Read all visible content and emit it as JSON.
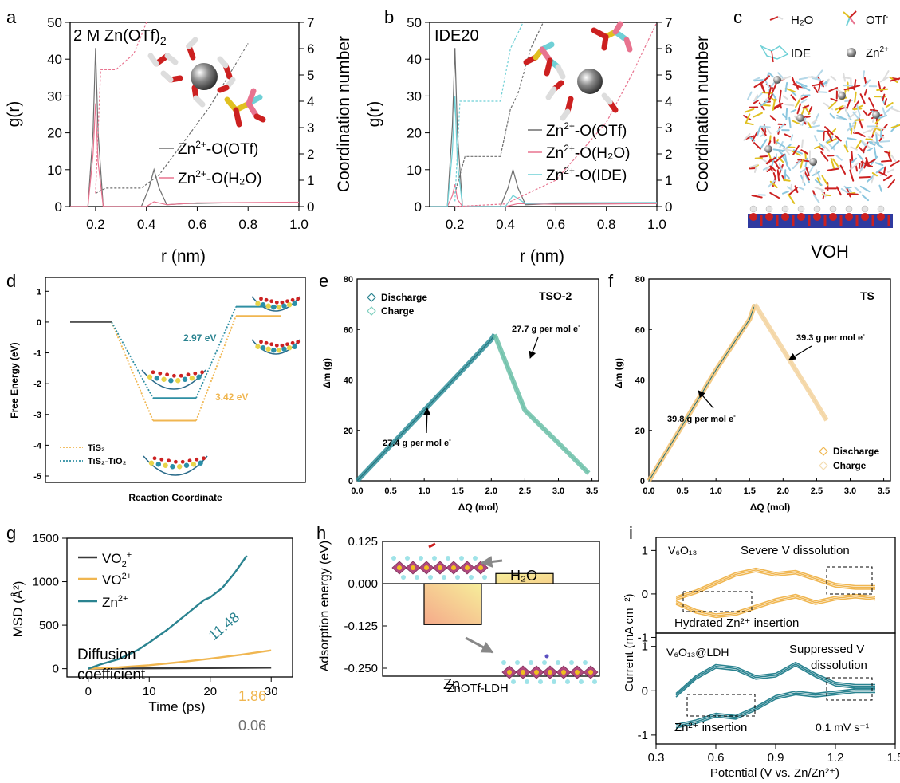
{
  "colors": {
    "gray": "#6e6e6e",
    "pink": "#e8738f",
    "cyan": "#6fd0d6",
    "teal": "#2a8390",
    "orange": "#f0b650",
    "tealdot": "#2f8fa3",
    "black": "#3a3a3a"
  },
  "panels": {
    "a": {
      "label": "a",
      "annotation": "2 M Zn(OTf)",
      "annotation_sub": "2",
      "xlabel": "r (nm)",
      "ylabel": "g(r)",
      "y2label": "Coordination number",
      "xticks": [
        "0.2",
        "0.4",
        "0.6",
        "0.8",
        "1.0"
      ],
      "yticks": [
        "0",
        "10",
        "20",
        "30",
        "40",
        "50"
      ],
      "y2ticks": [
        "0",
        "1",
        "2",
        "3",
        "4",
        "5",
        "6",
        "7"
      ],
      "legend": [
        {
          "base": "Zn",
          "sup": "2+",
          "rest": "-O(OTf)"
        },
        {
          "base": "Zn",
          "sup": "2+",
          "rest": "-O(H₂O)"
        }
      ]
    },
    "b": {
      "label": "b",
      "annotation": "IDE20",
      "xlabel": "r (nm)",
      "ylabel": "g(r)",
      "y2label": "Coordination number",
      "xticks": [
        "0.2",
        "0.4",
        "0.6",
        "0.8",
        "1.0"
      ],
      "yticks": [
        "0",
        "10",
        "20",
        "30",
        "40",
        "50"
      ],
      "y2ticks": [
        "0",
        "1",
        "2",
        "3",
        "4",
        "5",
        "6",
        "7"
      ],
      "legend": [
        {
          "base": "Zn",
          "sup": "2+",
          "rest": "-O(OTf)"
        },
        {
          "base": "Zn",
          "sup": "2+",
          "rest": "-O(H₂O)"
        },
        {
          "base": "Zn",
          "sup": "2+",
          "rest": "-O(IDE)"
        }
      ]
    },
    "c": {
      "label": "c",
      "legend_h2o": "H₂O",
      "legend_otf": "OTf",
      "legend_otf_sup": "-",
      "legend_ide": "IDE",
      "legend_zn": "Zn",
      "legend_zn_sup": "2+",
      "caption": "VOH"
    },
    "d": {
      "label": "d",
      "ylabel": "Free Energy (eV)",
      "xlabel": "Reaction Coordinate",
      "yticks": [
        "1",
        "0",
        "-1",
        "-2",
        "-3",
        "-4",
        "-5"
      ],
      "barrier1": "2.97 eV",
      "barrier2": "3.42 eV",
      "legend": [
        "TiS₂",
        "TiS₂-TiO₂"
      ]
    },
    "e": {
      "label": "e",
      "title": "TSO-2",
      "xlabel": "ΔQ (mol)",
      "ylabel": "Δm (g)",
      "xticks": [
        "0.0",
        "0.5",
        "1.0",
        "1.5",
        "2.0",
        "2.5",
        "3.0",
        "3.5"
      ],
      "yticks": [
        "0",
        "20",
        "40",
        "60",
        "80"
      ],
      "legend": [
        "Discharge",
        "Charge"
      ],
      "ann1": "27.7 g per mol e",
      "ann2": "27.4 g per mol e",
      "ann_sup": "-"
    },
    "f": {
      "label": "f",
      "title": "TS",
      "xlabel": "ΔQ (mol)",
      "ylabel": "Δm (g)",
      "xticks": [
        "0.0",
        "0.5",
        "1.0",
        "1.5",
        "2.0",
        "2.5",
        "3.0",
        "3.5"
      ],
      "yticks": [
        "0",
        "20",
        "40",
        "60",
        "80"
      ],
      "legend": [
        "Discharge",
        "Charge"
      ],
      "ann1": "39.3 g per mol e",
      "ann2": "39.8 g per mol e",
      "ann_sup": "-"
    },
    "g": {
      "label": "g",
      "xlabel": "Time (ps)",
      "ylabel": "MSD (Å²)",
      "xticks": [
        "0",
        "10",
        "20",
        "30"
      ],
      "yticks": [
        "0",
        "500",
        "1000",
        "1500"
      ],
      "legend": [
        {
          "base": "VO",
          "sub": "2",
          "sup": "+"
        },
        {
          "base": "VO",
          "sub": "",
          "sup": "2+"
        },
        {
          "base": "Zn",
          "sub": "",
          "sup": "2+"
        }
      ],
      "text1": "Diffusion",
      "text2": "coefficient",
      "val_zn": "11.48",
      "val_vo": "1.86",
      "val_vo2": "0.06"
    },
    "h": {
      "label": "h",
      "ylabel": "Adsorption energy (eV)",
      "xlabel": "ZnOTf-LDH",
      "yticks": [
        "0.125",
        "0.000",
        "-0.125",
        "-0.250"
      ],
      "bar1_label": "H₂O",
      "bar2_label": "Zn"
    },
    "i": {
      "label": "i",
      "ylabel": "Current (mA cm⁻²)",
      "xlabel": "Potential (V vs. Zn/Zn²⁺)",
      "xticks": [
        "0.3",
        "0.6",
        "0.9",
        "1.2",
        "1.5"
      ],
      "yticks_top": [
        "1",
        "0",
        "-1"
      ],
      "yticks_bot": [
        "1",
        "0",
        "-1"
      ],
      "top_title": "V₆O₁₃",
      "top_note": "Severe V dissolution",
      "top_note2": "Hydrated Zn²⁺ insertion",
      "bot_title": "V₆O₁₃@LDH",
      "bot_note_a": "Suppressed V",
      "bot_note_b": "dissolution",
      "bot_note2": "Zn²⁺ insertion",
      "scan_rate": "0.1 mV s⁻¹"
    }
  },
  "chart_data": [
    {
      "type": "line",
      "panel": "a",
      "xlabel": "r (nm)",
      "ylabel": "g(r)",
      "y2label": "Coordination number",
      "xlim": [
        0.1,
        1.0
      ],
      "ylim": [
        0,
        50
      ],
      "y2lim": [
        0,
        7
      ],
      "series": [
        {
          "name": "Zn2+-O(OTf)",
          "axis": "g(r)",
          "x": [
            0.1,
            0.17,
            0.19,
            0.2,
            0.21,
            0.23,
            0.38,
            0.41,
            0.43,
            0.45,
            0.48,
            0.55,
            0.7,
            1.0
          ],
          "y": [
            0,
            0,
            20,
            43,
            20,
            0,
            0,
            5,
            10,
            5,
            0.5,
            0.8,
            1,
            1
          ]
        },
        {
          "name": "Zn2+-O(H2O)",
          "axis": "g(r)",
          "x": [
            0.1,
            0.17,
            0.19,
            0.2,
            0.21,
            0.23,
            0.4,
            0.43,
            0.48,
            0.6,
            1.0
          ],
          "y": [
            0,
            0,
            14,
            28,
            12,
            0,
            0,
            1.3,
            0.5,
            1.0,
            1.2
          ]
        },
        {
          "name": "CN OTf",
          "axis": "coordination",
          "x": [
            0.2,
            0.24,
            0.38,
            0.45,
            0.55,
            0.65,
            0.75,
            0.8
          ],
          "y": [
            0.5,
            0.7,
            0.7,
            1.2,
            2.5,
            3.8,
            5.4,
            6.2
          ]
        },
        {
          "name": "CN H2O",
          "axis": "coordination",
          "x": [
            0.2,
            0.22,
            0.28,
            0.35,
            0.38,
            0.4
          ],
          "y": [
            0.5,
            5.2,
            5.2,
            5.8,
            6.5,
            7
          ]
        }
      ]
    },
    {
      "type": "line",
      "panel": "b",
      "xlabel": "r (nm)",
      "ylabel": "g(r)",
      "y2label": "Coordination number",
      "xlim": [
        0.1,
        1.0
      ],
      "ylim": [
        0,
        50
      ],
      "y2lim": [
        0,
        7
      ],
      "series": [
        {
          "name": "Zn2+-O(OTf)",
          "axis": "g(r)",
          "x": [
            0.1,
            0.17,
            0.19,
            0.2,
            0.21,
            0.23,
            0.38,
            0.41,
            0.43,
            0.45,
            0.48,
            0.6,
            1.0
          ],
          "y": [
            0,
            0,
            22,
            43,
            20,
            0,
            0,
            5,
            10,
            5,
            0.5,
            0.8,
            1
          ]
        },
        {
          "name": "Zn2+-O(H2O)",
          "axis": "g(r)",
          "x": [
            0.1,
            0.17,
            0.19,
            0.2,
            0.21,
            0.23,
            0.4,
            0.45,
            0.6,
            1.0
          ],
          "y": [
            0,
            0,
            3,
            6,
            2,
            0,
            0,
            0.8,
            0.6,
            0.8
          ]
        },
        {
          "name": "Zn2+-O(IDE)",
          "axis": "g(r)",
          "x": [
            0.1,
            0.17,
            0.19,
            0.2,
            0.21,
            0.23,
            0.4,
            0.43,
            0.48,
            0.6,
            1.0
          ],
          "y": [
            0,
            0,
            15,
            30,
            12,
            0,
            0,
            3,
            0.8,
            1.0,
            1.1
          ]
        },
        {
          "name": "CN OTf",
          "axis": "coordination",
          "x": [
            0.2,
            0.24,
            0.38,
            0.42,
            0.45,
            0.5,
            0.55
          ],
          "y": [
            0.5,
            1.9,
            1.9,
            3.7,
            4.3,
            6.0,
            7
          ]
        },
        {
          "name": "CN H2O",
          "axis": "coordination",
          "x": [
            0.2,
            0.4,
            0.6,
            0.8,
            0.9,
            1.0
          ],
          "y": [
            0,
            0.1,
            1.0,
            3.2,
            5.0,
            7
          ]
        },
        {
          "name": "CN IDE",
          "axis": "coordination",
          "x": [
            0.2,
            0.22,
            0.38,
            0.42,
            0.47
          ],
          "y": [
            0.2,
            4.0,
            4.0,
            6.0,
            7
          ]
        }
      ]
    },
    {
      "type": "line",
      "panel": "d",
      "xlabel": "Reaction Coordinate",
      "ylabel": "Free Energy (eV)",
      "ylim": [
        -5,
        1.5
      ],
      "series": [
        {
          "name": "TiS2",
          "values": [
            0,
            -3.2,
            0.2
          ]
        },
        {
          "name": "TiS2-TiO2",
          "values": [
            0,
            -2.47,
            0.5
          ]
        }
      ],
      "barriers": {
        "TiS2-TiO2": 2.97,
        "TiS2": 3.42
      }
    },
    {
      "type": "scatter",
      "panel": "e",
      "xlabel": "ΔQ (mol)",
      "ylabel": "Δm (g)",
      "xlim": [
        0,
        3.6
      ],
      "ylim": [
        0,
        80
      ],
      "series": [
        {
          "name": "Discharge",
          "x": [
            0,
            0.5,
            1.0,
            1.5,
            2.0,
            2.05
          ],
          "y": [
            0,
            14,
            28,
            42,
            56,
            58
          ]
        },
        {
          "name": "Charge",
          "x": [
            2.05,
            2.5,
            3.0,
            3.45
          ],
          "y": [
            58,
            28,
            15,
            3
          ]
        }
      ],
      "slopes": {
        "charge": 27.7,
        "discharge": 27.4
      }
    },
    {
      "type": "scatter",
      "panel": "f",
      "xlabel": "ΔQ (mol)",
      "ylabel": "Δm (g)",
      "xlim": [
        0,
        3.6
      ],
      "ylim": [
        0,
        80
      ],
      "series": [
        {
          "name": "Discharge",
          "x": [
            0,
            0.5,
            1.0,
            1.5,
            1.58
          ],
          "y": [
            0,
            22,
            44,
            64,
            70
          ]
        },
        {
          "name": "Charge",
          "x": [
            1.58,
            2.0,
            2.4,
            2.65
          ],
          "y": [
            70,
            52,
            35,
            24
          ]
        }
      ],
      "slopes": {
        "charge": 39.3,
        "discharge": 39.8
      }
    },
    {
      "type": "line",
      "panel": "g",
      "xlabel": "Time (ps)",
      "ylabel": "MSD (Å²)",
      "xlim": [
        0,
        30
      ],
      "ylim": [
        0,
        1500
      ],
      "series": [
        {
          "name": "VO2+",
          "x": [
            0,
            10,
            20,
            30
          ],
          "y": [
            0,
            4,
            8,
            12
          ]
        },
        {
          "name": "VO2+ (2+)",
          "x": [
            0,
            5,
            10,
            15,
            20,
            25,
            30
          ],
          "y": [
            0,
            15,
            40,
            75,
            115,
            160,
            210
          ]
        },
        {
          "name": "Zn2+",
          "x": [
            0,
            2,
            5,
            8,
            10,
            13,
            16,
            19,
            20,
            22,
            24,
            26
          ],
          "y": [
            0,
            50,
            110,
            210,
            300,
            450,
            620,
            790,
            820,
            930,
            1100,
            1300
          ]
        }
      ],
      "labels": {
        "Zn2+": 11.48,
        "VO2+": 1.86,
        "VO2+_ion": 0.06
      }
    },
    {
      "type": "bar",
      "panel": "h",
      "ylabel": "Adsorption energy (eV)",
      "xlabel": "ZnOTf-LDH",
      "ylim": [
        -0.25,
        0.125
      ],
      "categories": [
        "Zn",
        "H2O"
      ],
      "values": [
        -0.121,
        0.03
      ]
    },
    {
      "type": "line",
      "panel": "i",
      "xlabel": "Potential (V vs. Zn/Zn2+)",
      "ylabel": "Current (mA cm-2)",
      "xlim": [
        0.3,
        1.5
      ],
      "series": [
        {
          "name": "V6O13 anodic",
          "x": [
            0.4,
            0.5,
            0.6,
            0.7,
            0.8,
            0.9,
            1.0,
            1.1,
            1.2,
            1.3,
            1.4
          ],
          "y": [
            -0.1,
            0.05,
            0.25,
            0.45,
            0.55,
            0.45,
            0.5,
            0.35,
            0.2,
            0.15,
            0.15
          ]
        },
        {
          "name": "V6O13 cathodic",
          "x": [
            1.4,
            1.3,
            1.2,
            1.1,
            1.0,
            0.9,
            0.8,
            0.7,
            0.6,
            0.5,
            0.4
          ],
          "y": [
            -0.1,
            -0.05,
            -0.1,
            -0.2,
            -0.05,
            -0.15,
            -0.3,
            -0.45,
            -0.5,
            -0.4,
            -0.2
          ]
        },
        {
          "name": "V6O13@LDH anodic",
          "x": [
            0.4,
            0.5,
            0.6,
            0.7,
            0.8,
            0.9,
            1.0,
            1.1,
            1.2,
            1.3,
            1.4
          ],
          "y": [
            -0.1,
            0.3,
            0.55,
            0.5,
            0.3,
            0.35,
            0.6,
            0.35,
            0.15,
            0.1,
            0.1
          ]
        },
        {
          "name": "V6O13@LDH cathodic",
          "x": [
            1.4,
            1.3,
            1.2,
            1.1,
            1.0,
            0.9,
            0.8,
            0.7,
            0.6,
            0.5,
            0.4
          ],
          "y": [
            0,
            0,
            -0.05,
            -0.1,
            -0.05,
            -0.15,
            -0.4,
            -0.6,
            -0.55,
            -0.7,
            -0.8
          ]
        }
      ]
    }
  ]
}
